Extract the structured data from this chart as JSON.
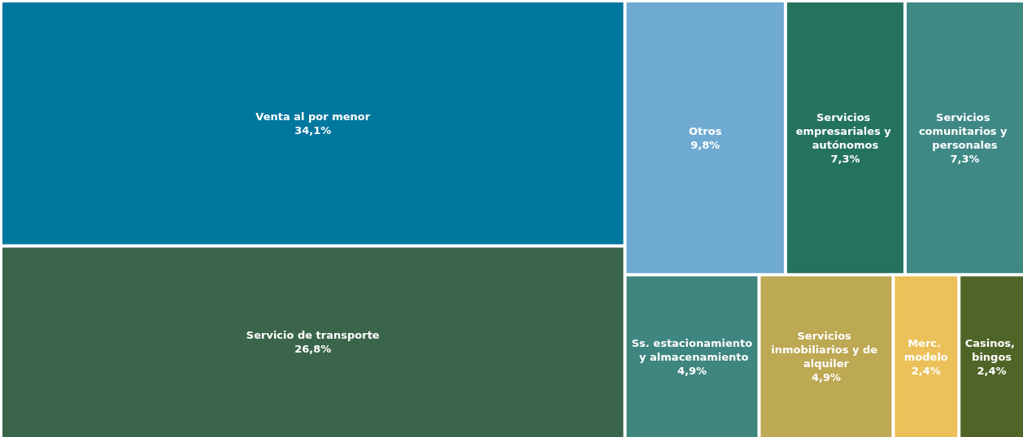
{
  "chart_data": {
    "type": "other",
    "categories": [
      "Venta al por menor",
      "Servicio de transporte",
      "Otros",
      "Servicios comunitarios y personales",
      "Servicios empresariales y autónomos",
      "Servicios inmobiliarios y de alquiler",
      "Ss. estacionamiento y almacenamiento",
      "Casinos, bingos",
      "Merc. modelo"
    ],
    "values": [
      34.1,
      26.8,
      9.8,
      7.3,
      7.3,
      4.9,
      4.9,
      2.4,
      2.4
    ],
    "value_labels": [
      "34,1%",
      "26,8%",
      "9,8%",
      "7,3%",
      "7,3%",
      "4,9%",
      "4,9%",
      "2,4%",
      "2,4%"
    ],
    "colors": [
      "#00779e",
      "#3b654b",
      "#6eaad1",
      "#3f8985",
      "#24735e",
      "#bda853",
      "#3f8580",
      "#4f6427",
      "#ecc15a"
    ]
  }
}
